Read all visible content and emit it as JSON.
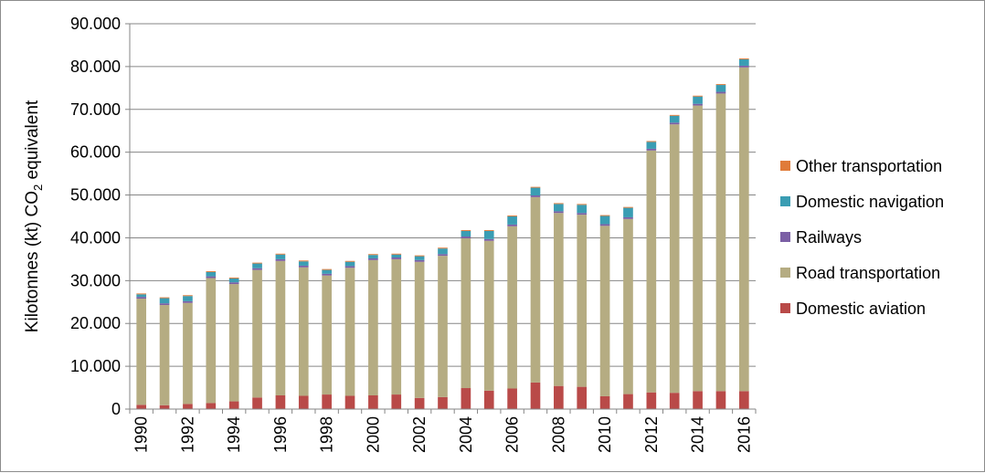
{
  "chart_data": {
    "type": "bar",
    "stacked": true,
    "ylabel": "Kilotonnes (kt) CO2 equivalent",
    "ylabel_parts": {
      "a": "Kilotonnes (kt) CO",
      "sub": "2",
      "b": " equivalent"
    },
    "ylim": [
      0,
      90000
    ],
    "yticks": [
      0,
      10000,
      20000,
      30000,
      40000,
      50000,
      60000,
      70000,
      80000,
      90000
    ],
    "ytick_labels": [
      "0",
      "10.000",
      "20.000",
      "30.000",
      "40.000",
      "50.000",
      "60.000",
      "70.000",
      "80.000",
      "90.000"
    ],
    "categories": [
      "1990",
      "1991",
      "1992",
      "1993",
      "1994",
      "1995",
      "1996",
      "1997",
      "1998",
      "1999",
      "2000",
      "2001",
      "2002",
      "2003",
      "2004",
      "2005",
      "2006",
      "2007",
      "2008",
      "2009",
      "2010",
      "2011",
      "2012",
      "2013",
      "2014",
      "2015",
      "2016"
    ],
    "x_tick_labels": [
      "1990",
      "",
      "1992",
      "",
      "1994",
      "",
      "1996",
      "",
      "1998",
      "",
      "2000",
      "",
      "2002",
      "",
      "2004",
      "",
      "2006",
      "",
      "2008",
      "",
      "2010",
      "",
      "2012",
      "",
      "2014",
      "",
      "2016"
    ],
    "legend_position": "right",
    "series": [
      {
        "name": "Domestic aviation",
        "color": "#b94a48",
        "values": [
          1000,
          900,
          1200,
          1400,
          1800,
          2700,
          3200,
          3100,
          3400,
          3100,
          3200,
          3400,
          2600,
          2800,
          4900,
          4300,
          4800,
          6200,
          5400,
          5200,
          3000,
          3500,
          3900,
          3800,
          4200,
          4200,
          4200
        ]
      },
      {
        "name": "Road transportation",
        "color": "#b5ac82",
        "values": [
          24800,
          23400,
          23600,
          29200,
          27400,
          29800,
          31400,
          30000,
          27800,
          29900,
          31600,
          31600,
          31800,
          33000,
          35000,
          35000,
          37900,
          43300,
          40400,
          40200,
          39800,
          40900,
          56500,
          62700,
          66700,
          69500,
          75600
        ]
      },
      {
        "name": "Railways",
        "color": "#7b5fa5",
        "values": [
          400,
          400,
          400,
          400,
          400,
          400,
          400,
          400,
          400,
          400,
          400,
          400,
          400,
          400,
          400,
          400,
          400,
          400,
          400,
          400,
          400,
          400,
          400,
          400,
          400,
          400,
          400
        ]
      },
      {
        "name": "Domestic navigation",
        "color": "#3a9db3",
        "values": [
          600,
          1200,
          1200,
          1000,
          900,
          1100,
          1100,
          1000,
          900,
          1000,
          800,
          700,
          900,
          1300,
          1300,
          1900,
          1900,
          1800,
          1700,
          1900,
          1900,
          2200,
          1600,
          1600,
          1700,
          1600,
          1500
        ]
      },
      {
        "name": "Other transportation",
        "color": "#e07b39",
        "values": [
          200,
          200,
          200,
          200,
          200,
          200,
          200,
          200,
          200,
          200,
          200,
          200,
          200,
          200,
          200,
          200,
          200,
          200,
          200,
          200,
          200,
          200,
          200,
          200,
          200,
          200,
          200
        ]
      }
    ]
  }
}
